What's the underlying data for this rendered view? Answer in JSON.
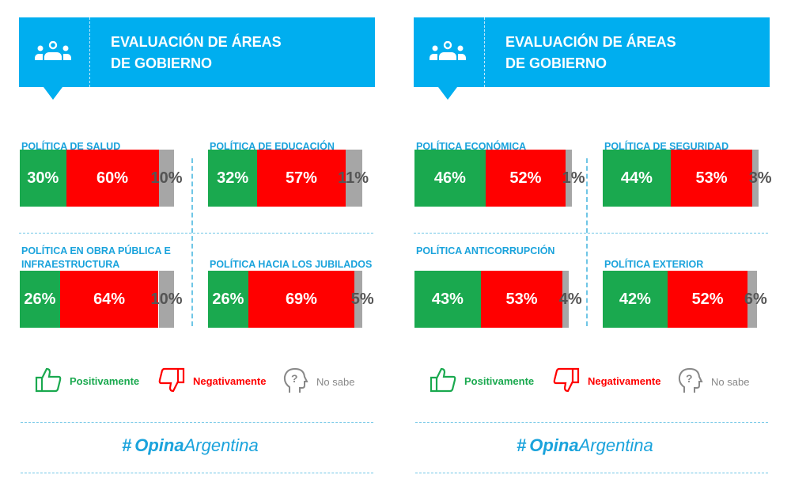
{
  "colors": {
    "header": "#00aeef",
    "positive": "#1aa94f",
    "negative": "#ff0000",
    "unknown": "#a6a6a6",
    "label": "#1aa3dc"
  },
  "legend": {
    "positive": "Positivamente",
    "negative": "Negativamente",
    "unknown": "No sabe",
    "icons": [
      "thumbs-up-icon",
      "thumbs-down-icon",
      "head-question-icon"
    ]
  },
  "brand": {
    "hash": "#",
    "bold": "Opina",
    "light": "Argentina"
  },
  "panels": [
    {
      "title_line1": "EVALUACIÓN DE ÁREAS",
      "title_line2": "DE GOBIERNO"
    },
    {
      "title_line1": "EVALUACIÓN DE ÁREAS",
      "title_line2": "DE GOBIERNO"
    }
  ],
  "chart_data": [
    {
      "type": "bar",
      "stacked": true,
      "orientation": "horizontal",
      "series_names": [
        "Positivamente",
        "Negativamente",
        "No sabe"
      ],
      "items": [
        {
          "label": "POLÍTICA DE SALUD",
          "values": [
            30,
            60,
            10
          ],
          "labels": [
            "30%",
            "60%",
            "10%"
          ]
        },
        {
          "label": "POLÍTICA DE EDUCACIÓN",
          "values": [
            32,
            57,
            11
          ],
          "labels": [
            "32%",
            "57%",
            "11%"
          ]
        },
        {
          "label": "POLÍTICA EN OBRA PÚBLICA E INFRAESTRUCTURA",
          "values": [
            26,
            64,
            10
          ],
          "labels": [
            "26%",
            "64%",
            "10%"
          ]
        },
        {
          "label": "POLÍTICA HACIA LOS JUBILADOS",
          "values": [
            26,
            69,
            5
          ],
          "labels": [
            "26%",
            "69%",
            "5%"
          ]
        }
      ]
    },
    {
      "type": "bar",
      "stacked": true,
      "orientation": "horizontal",
      "series_names": [
        "Positivamente",
        "Negativamente",
        "No sabe"
      ],
      "items": [
        {
          "label": "POLÍTICA ECONÓMICA",
          "values": [
            46,
            52,
            1
          ],
          "labels": [
            "46%",
            "52%",
            "1%"
          ]
        },
        {
          "label": "POLÍTICA DE SEGURIDAD",
          "values": [
            44,
            53,
            3
          ],
          "labels": [
            "44%",
            "53%",
            "3%"
          ]
        },
        {
          "label": "POLÍTICA ANTICORRUPCIÓN",
          "values": [
            43,
            53,
            4
          ],
          "labels": [
            "43%",
            "53%",
            "4%"
          ]
        },
        {
          "label": "POLÍTICA EXTERIOR",
          "values": [
            42,
            52,
            6
          ],
          "labels": [
            "42%",
            "52%",
            "6%"
          ]
        }
      ]
    }
  ]
}
